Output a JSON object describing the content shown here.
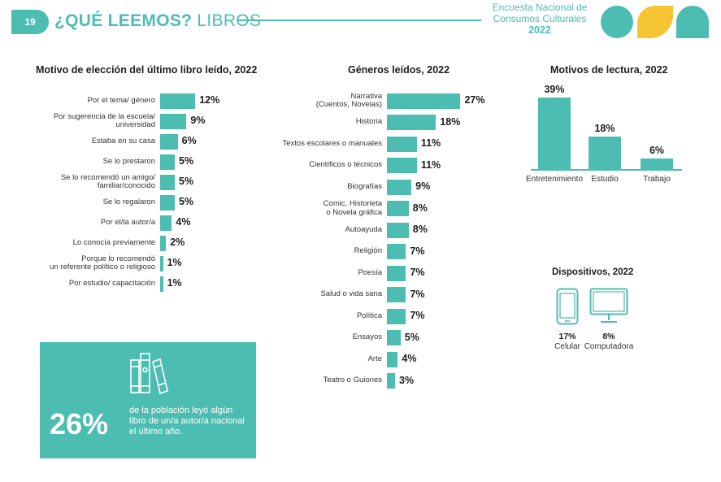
{
  "header": {
    "page_number": "19",
    "title_bold": "¿QUÉ LEEMOS?",
    "title_rest": " LIBROS",
    "survey_line1": "Encuesta Nacional de",
    "survey_line2": "Consumos Culturales",
    "survey_year": "2022"
  },
  "colors": {
    "accent": "#4dbdb1",
    "yellow": "#f6c533"
  },
  "chart_data": [
    {
      "type": "bar",
      "orientation": "horizontal",
      "title": "Motivo de elección del último libro leído, 2022",
      "categories": [
        [
          "Por el tema/ género"
        ],
        [
          "Por sugerencia de la escuela/",
          "universidad"
        ],
        [
          "Estaba en su casa"
        ],
        [
          "Se lo prestaron"
        ],
        [
          "Se lo recomendó un amigo/",
          "familiar/conocido"
        ],
        [
          "Se lo regalaron"
        ],
        [
          "Por el/la autor/a"
        ],
        [
          "Lo conocía previamente"
        ],
        [
          "Porque lo recomendó",
          "un referente político o religioso"
        ],
        [
          "Por estudio/ capacitación"
        ]
      ],
      "values": [
        12,
        9,
        6,
        5,
        5,
        5,
        4,
        2,
        1,
        1
      ],
      "value_labels": [
        "12%",
        "9%",
        "6%",
        "5%",
        "5%",
        "5%",
        "4%",
        "2%",
        "1%",
        "1%"
      ]
    },
    {
      "type": "bar",
      "orientation": "horizontal",
      "title": "Géneros leídos, 2022",
      "categories": [
        [
          "Narrativa",
          "(Cuentos, Novelas)"
        ],
        [
          "Historia"
        ],
        [
          "Textos escolares o manuales"
        ],
        [
          "Científicos o técnicos"
        ],
        [
          "Biografías"
        ],
        [
          "Comic, Historieta",
          "o Novela gráfica"
        ],
        [
          "Autoayuda"
        ],
        [
          "Religión"
        ],
        [
          "Poesía"
        ],
        [
          "Salud o vida sana"
        ],
        [
          "Política"
        ],
        [
          "Ensayos"
        ],
        [
          "Arte"
        ],
        [
          "Teatro o Guiones"
        ]
      ],
      "values": [
        27,
        18,
        11,
        11,
        9,
        8,
        8,
        7,
        7,
        7,
        7,
        5,
        4,
        3
      ],
      "value_labels": [
        "27%",
        "18%",
        "11%",
        "11%",
        "9%",
        "8%",
        "8%",
        "7%",
        "7%",
        "7%",
        "7%",
        "5%",
        "4%",
        "3%"
      ]
    },
    {
      "type": "bar",
      "orientation": "vertical",
      "title": "Motivos de lectura, 2022",
      "categories": [
        "Entretenimiento",
        "Estudio",
        "Trabajo"
      ],
      "values": [
        39,
        18,
        6
      ],
      "value_labels": [
        "39%",
        "18%",
        "6%"
      ]
    }
  ],
  "devices": {
    "title": "Dispositivos, 2022",
    "items": [
      {
        "label": "Celular",
        "value": "17%",
        "icon": "smartphone-icon"
      },
      {
        "label": "Computadora",
        "value": "8%",
        "icon": "desktop-computer-icon"
      }
    ]
  },
  "callout": {
    "percent": "26%",
    "text": "de la población leyó algún libro de un/a autor/a nacional el último año.",
    "icon": "books-icon"
  }
}
